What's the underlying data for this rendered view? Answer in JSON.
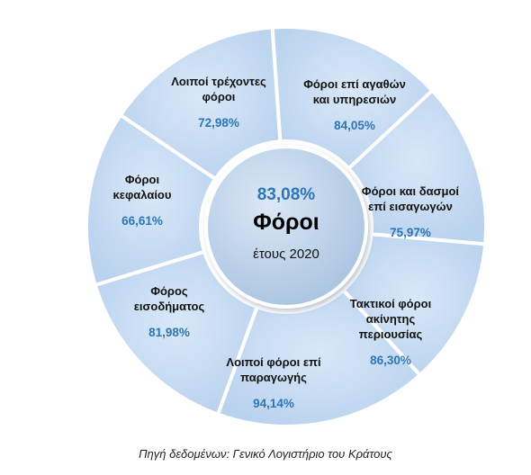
{
  "center": {
    "value": "83,08%",
    "title": "Φόροι",
    "subtitle": "έτους 2020"
  },
  "segments": [
    {
      "name": "Λοιποί τρέχοντες φόροι",
      "lines": [
        "Λοιποί τρέχοντες",
        "φόροι"
      ],
      "value": "72,98%"
    },
    {
      "name": "Φόροι επί αγαθών και υπηρεσιών",
      "lines": [
        "Φόροι επί αγαθών",
        "και υπηρεσιών"
      ],
      "value": "84,05%"
    },
    {
      "name": "Φόροι και δασμοί επί εισαγωγών",
      "lines": [
        "Φόροι και δασμοί",
        "επί εισαγωγών"
      ],
      "value": "75,97%"
    },
    {
      "name": "Τακτικοί φόροι ακίνητης περιουσίας",
      "lines": [
        "Τακτικοί φόροι",
        "ακίνητης",
        "περιουσίας"
      ],
      "value": "86,30%"
    },
    {
      "name": "Λοιποί φόροι επί παραγωγής",
      "lines": [
        "Λοιποί φόροι επί",
        "παραγωγής"
      ],
      "value": "94,14%"
    },
    {
      "name": "Φόρος εισοδήματος",
      "lines": [
        "Φόρος",
        "εισοδήματος"
      ],
      "value": "81,98%"
    },
    {
      "name": "Φόροι κεφαλαίου",
      "lines": [
        "Φόροι",
        "κεφαλαίου"
      ],
      "value": "66,61%"
    }
  ],
  "source": "Πηγή δεδομένων: Γενικό Λογιστήριο του Κράτους",
  "colors": {
    "segment_fill": "#c5dbf3",
    "segment_border": "#ffffff",
    "center_fill": "#b8cfe8",
    "percent_text": "#2e75b6"
  }
}
